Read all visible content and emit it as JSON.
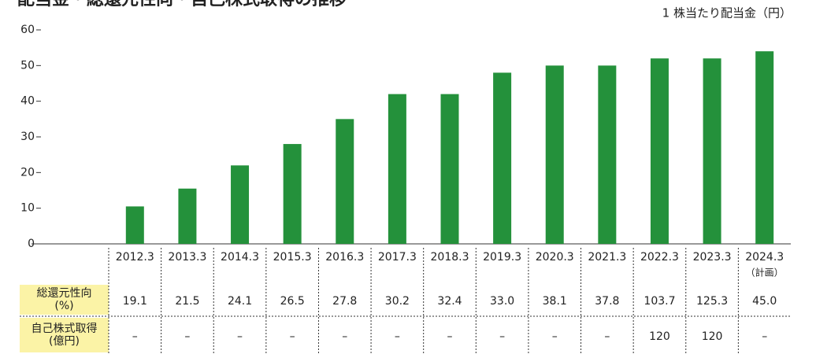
{
  "chart_data": {
    "type": "bar",
    "title": "配当金・総還元性向・自己株式取得の推移",
    "unit_label": "1 株当たり配当金（円）",
    "categories": [
      "2012.3",
      "2013.3",
      "2014.3",
      "2015.3",
      "2016.3",
      "2017.3",
      "2018.3",
      "2019.3",
      "2020.3",
      "2021.3",
      "2022.3",
      "2023.3",
      "2024.3"
    ],
    "plan_label": "（計画）",
    "values": [
      10.5,
      15.5,
      22,
      28,
      35,
      42,
      42,
      48,
      50,
      50,
      52,
      52,
      54
    ],
    "color": "#24913b",
    "ylim": [
      0,
      60
    ],
    "yticks": [
      0,
      10,
      20,
      30,
      40,
      50,
      60
    ],
    "table": [
      {
        "label": [
          "総還元性向",
          "(%)"
        ],
        "values": [
          "19.1",
          "21.5",
          "24.1",
          "26.5",
          "27.8",
          "30.2",
          "32.4",
          "33.0",
          "38.1",
          "37.8",
          "103.7",
          "125.3",
          "45.0"
        ]
      },
      {
        "label": [
          "自己株式取得",
          "(億円)"
        ],
        "values": [
          "–",
          "–",
          "–",
          "–",
          "–",
          "–",
          "–",
          "–",
          "–",
          "–",
          "120",
          "120",
          "–"
        ]
      }
    ]
  }
}
